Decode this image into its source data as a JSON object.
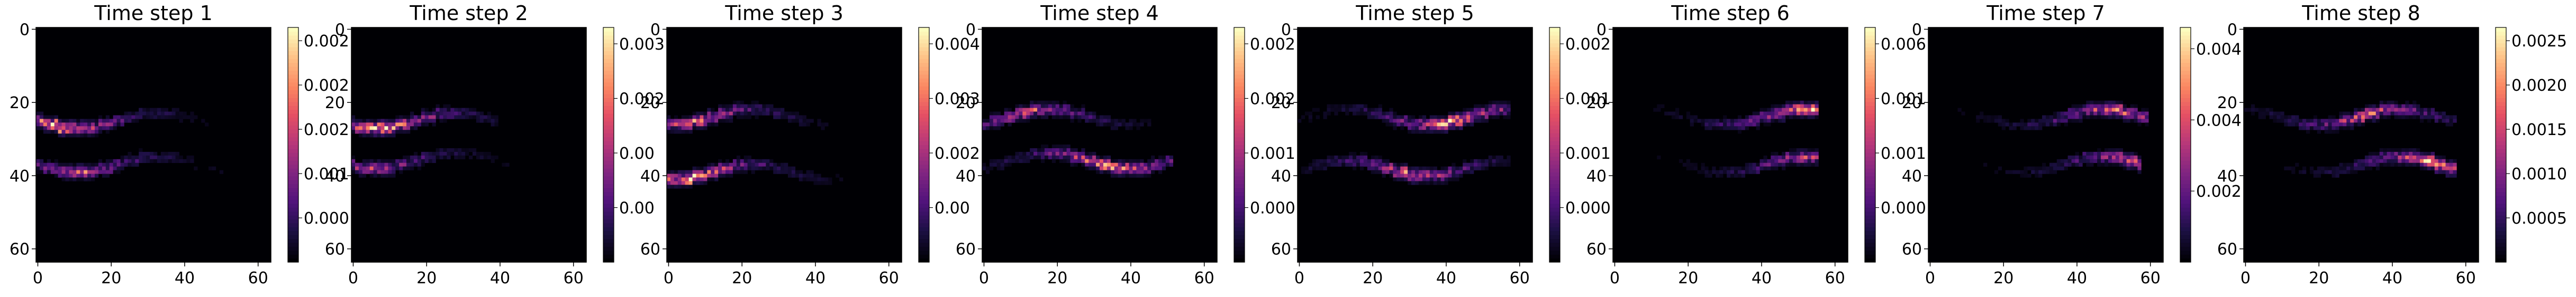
{
  "figure": {
    "colormap": "magma",
    "background": "#ffffff"
  },
  "chart_data": [
    {
      "type": "heatmap",
      "title": "Time step 1",
      "xlim": [
        0,
        64
      ],
      "ylim": [
        64,
        0
      ],
      "xticks": [
        "0",
        "20",
        "40",
        "60"
      ],
      "yticks": [
        "0",
        "20",
        "40",
        "60"
      ],
      "colorbar_ticks": [
        "0.000",
        "0.001",
        "0.002",
        "0.002",
        "0.002"
      ],
      "colorbar_ticks_visible": [
        "0.000",
        "0.00",
        "0.00",
        "0.002",
        "0.002"
      ],
      "data_description": "two faint streaks near rows 24 and 36, brightest at left edge cols 2-14",
      "streaks": [
        {
          "row": 25,
          "x_start": 0,
          "x_end": 48,
          "peak_x": 6,
          "peak": 1.0
        },
        {
          "row": 37,
          "x_start": 0,
          "x_end": 56,
          "peak_x": 12,
          "peak": 0.7
        }
      ]
    },
    {
      "type": "heatmap",
      "title": "Time step 2",
      "xlim": [
        0,
        64
      ],
      "ylim": [
        64,
        0
      ],
      "xticks": [
        "0",
        "20",
        "40",
        "60"
      ],
      "yticks": [
        "0",
        "20",
        "40",
        "60"
      ],
      "colorbar_ticks": [
        "0.00",
        "0.00",
        "0.002",
        "0.003"
      ],
      "streaks": [
        {
          "row": 25,
          "x_start": 0,
          "x_end": 40,
          "peak_x": 8,
          "peak": 1.0
        },
        {
          "row": 36,
          "x_start": 0,
          "x_end": 48,
          "peak_x": 6,
          "peak": 0.6
        }
      ]
    },
    {
      "type": "heatmap",
      "title": "Time step 3",
      "xlim": [
        0,
        64
      ],
      "ylim": [
        64,
        0
      ],
      "xticks": [
        "0",
        "20",
        "40",
        "60"
      ],
      "yticks": [
        "0",
        "20",
        "40",
        "60"
      ],
      "colorbar_ticks": [
        "0.00",
        "0.002",
        "0.003",
        "0.004"
      ],
      "streaks": [
        {
          "row": 24,
          "x_start": 0,
          "x_end": 44,
          "peak_x": 8,
          "peak": 0.8
        },
        {
          "row": 39,
          "x_start": 0,
          "x_end": 50,
          "peak_x": 6,
          "peak": 1.0
        }
      ]
    },
    {
      "type": "heatmap",
      "title": "Time step 4",
      "xlim": [
        0,
        64
      ],
      "ylim": [
        64,
        0
      ],
      "xticks": [
        "0",
        "20",
        "40",
        "60"
      ],
      "yticks": [
        "0",
        "20",
        "40",
        "60"
      ],
      "colorbar_ticks": [
        "0.000",
        "0.001",
        "0.002",
        "0.002"
      ],
      "streaks": [
        {
          "row": 24,
          "x_start": 0,
          "x_end": 46,
          "peak_x": 12,
          "peak": 0.7
        },
        {
          "row": 36,
          "x_start": 0,
          "x_end": 52,
          "peak_x": 34,
          "peak": 1.0
        }
      ]
    },
    {
      "type": "heatmap",
      "title": "Time step 5",
      "xlim": [
        0,
        64
      ],
      "ylim": [
        64,
        0
      ],
      "xticks": [
        "0",
        "20",
        "40",
        "60"
      ],
      "yticks": [
        "0",
        "20",
        "40",
        "60"
      ],
      "colorbar_ticks": [
        "0.000",
        "0.001",
        "0.001",
        "0.002"
      ],
      "streaks": [
        {
          "row": 24,
          "x_start": 0,
          "x_end": 58,
          "peak_x": 42,
          "peak": 1.0
        },
        {
          "row": 38,
          "x_start": 0,
          "x_end": 58,
          "peak_x": 30,
          "peak": 0.8
        }
      ]
    },
    {
      "type": "heatmap",
      "title": "Time step 6",
      "xlim": [
        0,
        64
      ],
      "ylim": [
        64,
        0
      ],
      "xticks": [
        "0",
        "20",
        "40",
        "60"
      ],
      "yticks": [
        "0",
        "20",
        "40",
        "60"
      ],
      "colorbar_ticks": [
        "0.000",
        "0.001",
        "0.001",
        "0.006"
      ],
      "streaks": [
        {
          "row": 24,
          "x_start": 10,
          "x_end": 56,
          "peak_x": 52,
          "peak": 1.0
        },
        {
          "row": 37,
          "x_start": 0,
          "x_end": 56,
          "peak_x": 52,
          "peak": 0.6
        }
      ]
    },
    {
      "type": "heatmap",
      "title": "Time step 7",
      "xlim": [
        0,
        64
      ],
      "ylim": [
        64,
        0
      ],
      "xticks": [
        "0",
        "20",
        "40",
        "60"
      ],
      "yticks": [
        "0",
        "20",
        "40",
        "60"
      ],
      "colorbar_ticks": [
        "0.002",
        "0.004",
        "0.004"
      ],
      "streaks": [
        {
          "row": 24,
          "x_start": 0,
          "x_end": 60,
          "peak_x": 50,
          "peak": 0.8
        },
        {
          "row": 37,
          "x_start": 0,
          "x_end": 58,
          "peak_x": 54,
          "peak": 0.7
        }
      ]
    },
    {
      "type": "heatmap",
      "title": "Time step 8",
      "xlim": [
        0,
        64
      ],
      "ylim": [
        64,
        0
      ],
      "xticks": [
        "0",
        "20",
        "40",
        "60"
      ],
      "yticks": [
        "0",
        "20",
        "40",
        "60"
      ],
      "colorbar_ticks": [
        "0.0005",
        "0.0010",
        "0.0015",
        "0.0020",
        "0.0025"
      ],
      "colorbar_values": [
        0.0005,
        0.001,
        0.0015,
        0.002,
        0.0025
      ],
      "colorbar_range": [
        0.0,
        0.0026
      ],
      "streaks": [
        {
          "row": 24,
          "x_start": 0,
          "x_end": 58,
          "peak_x": 34,
          "peak": 0.8
        },
        {
          "row": 37,
          "x_start": 0,
          "x_end": 58,
          "peak_x": 52,
          "peak": 1.0
        }
      ]
    }
  ]
}
